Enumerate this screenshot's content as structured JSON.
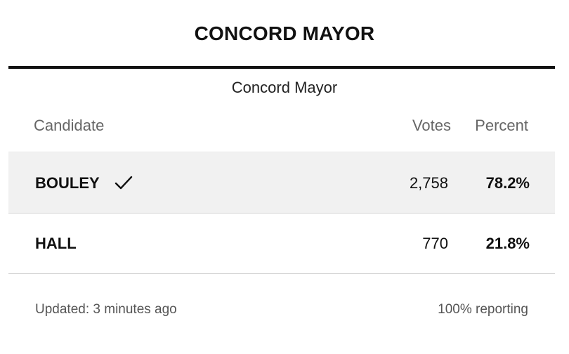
{
  "header": {
    "title": "CONCORD MAYOR",
    "subtitle": "Concord Mayor"
  },
  "table": {
    "columns": {
      "candidate": "Candidate",
      "votes": "Votes",
      "percent": "Percent"
    },
    "rows": [
      {
        "name": "BOULEY",
        "votes": "2,758",
        "percent": "78.2%",
        "winner": true,
        "icon": "checkmark-icon"
      },
      {
        "name": "HALL",
        "votes": "770",
        "percent": "21.8%",
        "winner": false
      }
    ]
  },
  "footer": {
    "updated": "Updated: 3 minutes ago",
    "reporting": "100% reporting"
  },
  "colors": {
    "winner_row_bg": "#f1f1f1",
    "rule": "#111111",
    "divider": "#d6d6d6"
  }
}
